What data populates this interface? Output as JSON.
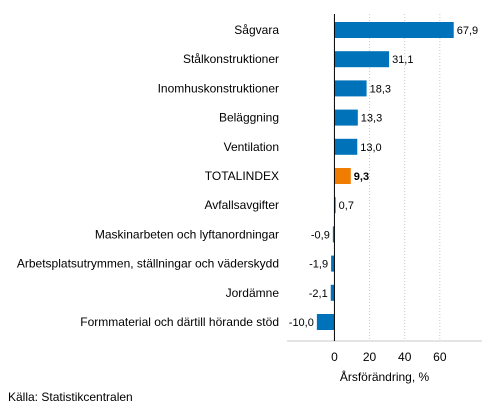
{
  "chart_data": {
    "type": "bar",
    "orientation": "horizontal",
    "categories": [
      "Sågvara",
      "Stålkonstruktioner",
      "Inomhuskonstruktioner",
      "Beläggning",
      "Ventilation",
      "TOTALINDEX",
      "Avfallsavgifter",
      "Maskinarbeten och lyftanordningar",
      "Arbetsplatsutrymmen, ställningar och väderskydd",
      "Jordämne",
      "Formmaterial och därtill hörande stöd"
    ],
    "values": [
      67.9,
      31.1,
      18.3,
      13.3,
      13.0,
      9.3,
      0.7,
      -0.9,
      -1.9,
      -2.1,
      -10.0
    ],
    "value_labels": [
      "67,9",
      "31,1",
      "18,3",
      "13,3",
      "13,0",
      "9,3",
      "0,7",
      "-0,9",
      "-1,9",
      "-2,1",
      "-10,0"
    ],
    "highlight": "TOTALINDEX",
    "xlabel": "Årsförändring, %",
    "xlim": [
      -27,
      84
    ],
    "xticks": [
      0,
      20,
      40,
      60
    ],
    "xtick_labels": [
      "0",
      "20",
      "40",
      "60"
    ],
    "grid": "vertical",
    "colors": {
      "bar": "#0072b9",
      "highlight": "#f07d00",
      "grid": "#c8c8c8",
      "zero_line": "#000000"
    }
  },
  "source": "Källa: Statistikcentralen"
}
